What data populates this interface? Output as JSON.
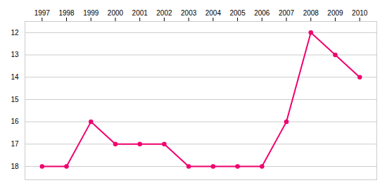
{
  "chart_data": {
    "type": "line",
    "x": [
      1997,
      1998,
      1999,
      2000,
      2001,
      2002,
      2003,
      2004,
      2005,
      2006,
      2007,
      2008,
      2009,
      2010
    ],
    "values": [
      18,
      18,
      16,
      17,
      17,
      17,
      18,
      18,
      18,
      18,
      16,
      12,
      13,
      14
    ],
    "color": "#f0006e",
    "marker": "circle",
    "xlim": [
      1996.3,
      2010.7
    ],
    "xticks": [
      1997,
      1998,
      1999,
      2000,
      2001,
      2002,
      2003,
      2004,
      2005,
      2006,
      2007,
      2008,
      2009,
      2010
    ],
    "ylim": [
      18.6,
      11.5
    ],
    "yticks": [
      12,
      13,
      14,
      15,
      16,
      17,
      18
    ],
    "grid": true
  }
}
